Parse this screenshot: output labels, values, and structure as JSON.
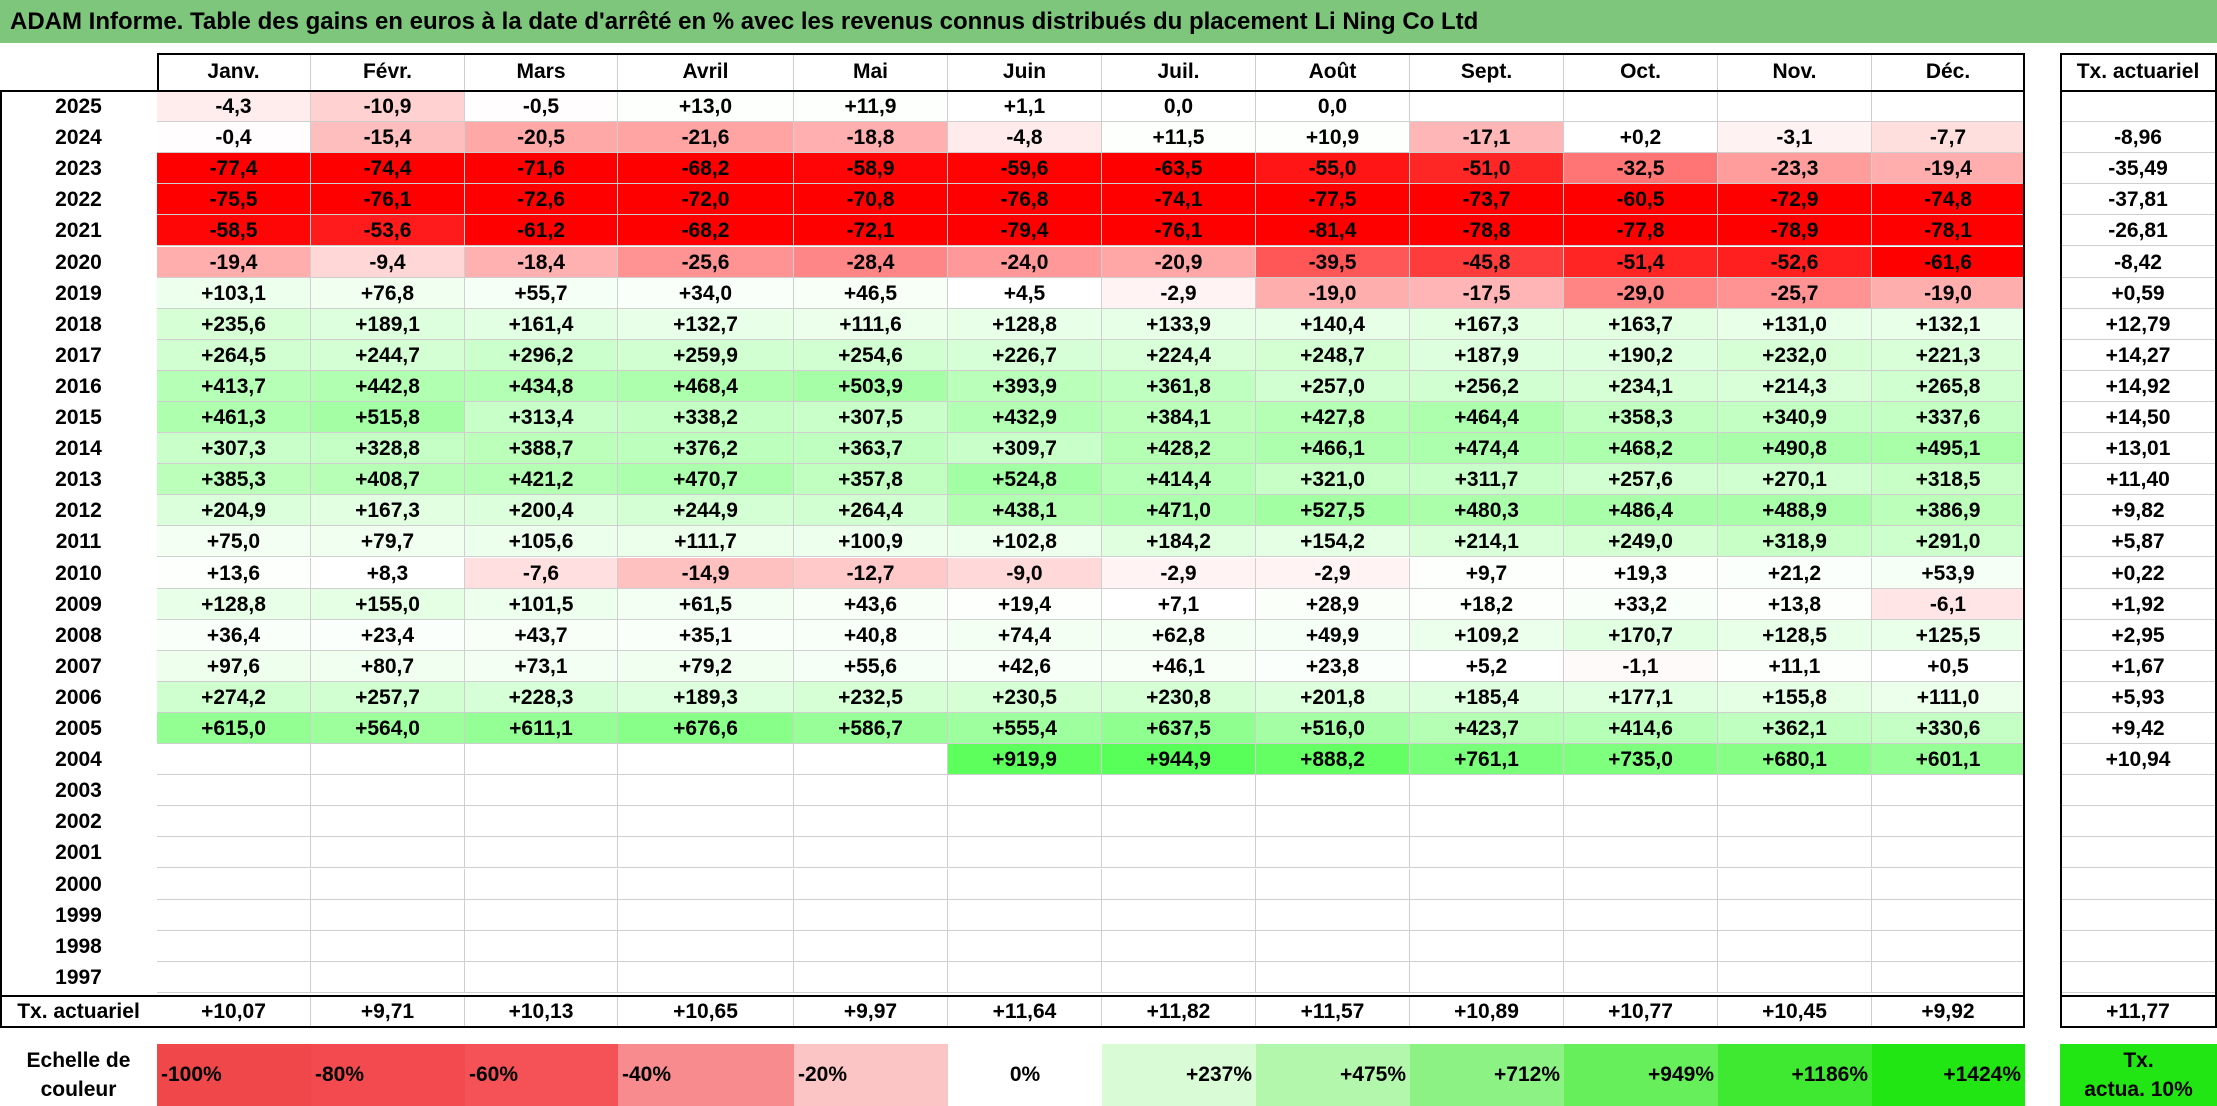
{
  "title": "ADAM Informe. Table des gains en euros à la date d'arrêté en % avec les revenus connus distribués du placement Li Ning Co Ltd",
  "months": [
    "Janv.",
    "Févr.",
    "Mars",
    "Avril",
    "Mai",
    "Juin",
    "Juil.",
    "Août",
    "Sept.",
    "Oct.",
    "Nov.",
    "Déc."
  ],
  "rate_header": "Tx. actuariel",
  "rows": [
    {
      "year": "2025",
      "values": [
        "-4,3",
        "-10,9",
        "-0,5",
        "+13,0",
        "+11,9",
        "+1,1",
        "0,0",
        "0,0",
        "",
        "",
        "",
        ""
      ],
      "rate": ""
    },
    {
      "year": "2024",
      "values": [
        "-0,4",
        "-15,4",
        "-20,5",
        "-21,6",
        "-18,8",
        "-4,8",
        "+11,5",
        "+10,9",
        "-17,1",
        "+0,2",
        "-3,1",
        "-7,7"
      ],
      "rate": "-8,96"
    },
    {
      "year": "2023",
      "values": [
        "-77,4",
        "-74,4",
        "-71,6",
        "-68,2",
        "-58,9",
        "-59,6",
        "-63,5",
        "-55,0",
        "-51,0",
        "-32,5",
        "-23,3",
        "-19,4"
      ],
      "rate": "-35,49"
    },
    {
      "year": "2022",
      "values": [
        "-75,5",
        "-76,1",
        "-72,6",
        "-72,0",
        "-70,8",
        "-76,8",
        "-74,1",
        "-77,5",
        "-73,7",
        "-60,5",
        "-72,9",
        "-74,8"
      ],
      "rate": "-37,81"
    },
    {
      "year": "2021",
      "values": [
        "-58,5",
        "-53,6",
        "-61,2",
        "-68,2",
        "-72,1",
        "-79,4",
        "-76,1",
        "-81,4",
        "-78,8",
        "-77,8",
        "-78,9",
        "-78,1"
      ],
      "rate": "-26,81"
    },
    {
      "year": "2020",
      "values": [
        "-19,4",
        "-9,4",
        "-18,4",
        "-25,6",
        "-28,4",
        "-24,0",
        "-20,9",
        "-39,5",
        "-45,8",
        "-51,4",
        "-52,6",
        "-61,6"
      ],
      "rate": "-8,42"
    },
    {
      "year": "2019",
      "values": [
        "+103,1",
        "+76,8",
        "+55,7",
        "+34,0",
        "+46,5",
        "+4,5",
        "-2,9",
        "-19,0",
        "-17,5",
        "-29,0",
        "-25,7",
        "-19,0"
      ],
      "rate": "+0,59"
    },
    {
      "year": "2018",
      "values": [
        "+235,6",
        "+189,1",
        "+161,4",
        "+132,7",
        "+111,6",
        "+128,8",
        "+133,9",
        "+140,4",
        "+167,3",
        "+163,7",
        "+131,0",
        "+132,1"
      ],
      "rate": "+12,79"
    },
    {
      "year": "2017",
      "values": [
        "+264,5",
        "+244,7",
        "+296,2",
        "+259,9",
        "+254,6",
        "+226,7",
        "+224,4",
        "+248,7",
        "+187,9",
        "+190,2",
        "+232,0",
        "+221,3"
      ],
      "rate": "+14,27"
    },
    {
      "year": "2016",
      "values": [
        "+413,7",
        "+442,8",
        "+434,8",
        "+468,4",
        "+503,9",
        "+393,9",
        "+361,8",
        "+257,0",
        "+256,2",
        "+234,1",
        "+214,3",
        "+265,8"
      ],
      "rate": "+14,92"
    },
    {
      "year": "2015",
      "values": [
        "+461,3",
        "+515,8",
        "+313,4",
        "+338,2",
        "+307,5",
        "+432,9",
        "+384,1",
        "+427,8",
        "+464,4",
        "+358,3",
        "+340,9",
        "+337,6"
      ],
      "rate": "+14,50"
    },
    {
      "year": "2014",
      "values": [
        "+307,3",
        "+328,8",
        "+388,7",
        "+376,2",
        "+363,7",
        "+309,7",
        "+428,2",
        "+466,1",
        "+474,4",
        "+468,2",
        "+490,8",
        "+495,1"
      ],
      "rate": "+13,01"
    },
    {
      "year": "2013",
      "values": [
        "+385,3",
        "+408,7",
        "+421,2",
        "+470,7",
        "+357,8",
        "+524,8",
        "+414,4",
        "+321,0",
        "+311,7",
        "+257,6",
        "+270,1",
        "+318,5"
      ],
      "rate": "+11,40"
    },
    {
      "year": "2012",
      "values": [
        "+204,9",
        "+167,3",
        "+200,4",
        "+244,9",
        "+264,4",
        "+438,1",
        "+471,0",
        "+527,5",
        "+480,3",
        "+486,4",
        "+488,9",
        "+386,9"
      ],
      "rate": "+9,82"
    },
    {
      "year": "2011",
      "values": [
        "+75,0",
        "+79,7",
        "+105,6",
        "+111,7",
        "+100,9",
        "+102,8",
        "+184,2",
        "+154,2",
        "+214,1",
        "+249,0",
        "+318,9",
        "+291,0"
      ],
      "rate": "+5,87"
    },
    {
      "year": "2010",
      "values": [
        "+13,6",
        "+8,3",
        "-7,6",
        "-14,9",
        "-12,7",
        "-9,0",
        "-2,9",
        "-2,9",
        "+9,7",
        "+19,3",
        "+21,2",
        "+53,9"
      ],
      "rate": "+0,22"
    },
    {
      "year": "2009",
      "values": [
        "+128,8",
        "+155,0",
        "+101,5",
        "+61,5",
        "+43,6",
        "+19,4",
        "+7,1",
        "+28,9",
        "+18,2",
        "+33,2",
        "+13,8",
        "-6,1"
      ],
      "rate": "+1,92"
    },
    {
      "year": "2008",
      "values": [
        "+36,4",
        "+23,4",
        "+43,7",
        "+35,1",
        "+40,8",
        "+74,4",
        "+62,8",
        "+49,9",
        "+109,2",
        "+170,7",
        "+128,5",
        "+125,5"
      ],
      "rate": "+2,95"
    },
    {
      "year": "2007",
      "values": [
        "+97,6",
        "+80,7",
        "+73,1",
        "+79,2",
        "+55,6",
        "+42,6",
        "+46,1",
        "+23,8",
        "+5,2",
        "-1,1",
        "+11,1",
        "+0,5"
      ],
      "rate": "+1,67"
    },
    {
      "year": "2006",
      "values": [
        "+274,2",
        "+257,7",
        "+228,3",
        "+189,3",
        "+232,5",
        "+230,5",
        "+230,8",
        "+201,8",
        "+185,4",
        "+177,1",
        "+155,8",
        "+111,0"
      ],
      "rate": "+5,93"
    },
    {
      "year": "2005",
      "values": [
        "+615,0",
        "+564,0",
        "+611,1",
        "+676,6",
        "+586,7",
        "+555,4",
        "+637,5",
        "+516,0",
        "+423,7",
        "+414,6",
        "+362,1",
        "+330,6"
      ],
      "rate": "+9,42"
    },
    {
      "year": "2004",
      "values": [
        "",
        "",
        "",
        "",
        "",
        "+919,9",
        "+944,9",
        "+888,2",
        "+761,1",
        "+735,0",
        "+680,1",
        "+601,1"
      ],
      "rate": "+10,94"
    },
    {
      "year": "2003",
      "values": [
        "",
        "",
        "",
        "",
        "",
        "",
        "",
        "",
        "",
        "",
        "",
        ""
      ],
      "rate": ""
    },
    {
      "year": "2002",
      "values": [
        "",
        "",
        "",
        "",
        "",
        "",
        "",
        "",
        "",
        "",
        "",
        ""
      ],
      "rate": ""
    },
    {
      "year": "2001",
      "values": [
        "",
        "",
        "",
        "",
        "",
        "",
        "",
        "",
        "",
        "",
        "",
        ""
      ],
      "rate": ""
    },
    {
      "year": "2000",
      "values": [
        "",
        "",
        "",
        "",
        "",
        "",
        "",
        "",
        "",
        "",
        "",
        ""
      ],
      "rate": ""
    },
    {
      "year": "1999",
      "values": [
        "",
        "",
        "",
        "",
        "",
        "",
        "",
        "",
        "",
        "",
        "",
        ""
      ],
      "rate": ""
    },
    {
      "year": "1998",
      "values": [
        "",
        "",
        "",
        "",
        "",
        "",
        "",
        "",
        "",
        "",
        "",
        ""
      ],
      "rate": ""
    },
    {
      "year": "1997",
      "values": [
        "",
        "",
        "",
        "",
        "",
        "",
        "",
        "",
        "",
        "",
        "",
        ""
      ],
      "rate": ""
    }
  ],
  "summary": {
    "label": "Tx. actuariel",
    "values": [
      "+10,07",
      "+9,71",
      "+10,13",
      "+10,65",
      "+9,97",
      "+11,64",
      "+11,82",
      "+11,57",
      "+10,89",
      "+10,77",
      "+10,45",
      "+9,92"
    ],
    "rate": "+11,77"
  },
  "scale": {
    "label_line1": "Echelle de",
    "label_line2": "couleur",
    "items": [
      {
        "text": "-100%",
        "color": "#f0474b"
      },
      {
        "text": "-80%",
        "color": "#f24a4f"
      },
      {
        "text": "-60%",
        "color": "#f45256"
      },
      {
        "text": "-40%",
        "color": "#f88b8e"
      },
      {
        "text": "-20%",
        "color": "#fbc4c5"
      },
      {
        "text": "0%",
        "color": "#ffffff"
      },
      {
        "text": "+237%",
        "color": "#d9fbd6"
      },
      {
        "text": "+475%",
        "color": "#b3f7ad"
      },
      {
        "text": "+712%",
        "color": "#8cf284"
      },
      {
        "text": "+949%",
        "color": "#66ee5b"
      },
      {
        "text": "+1186%",
        "color": "#3fe932"
      },
      {
        "text": "+1424%",
        "color": "#22e613"
      }
    ],
    "rate_line1": "Tx.",
    "rate_line2": "actua. 10%",
    "rate_color": "#22e613"
  }
}
